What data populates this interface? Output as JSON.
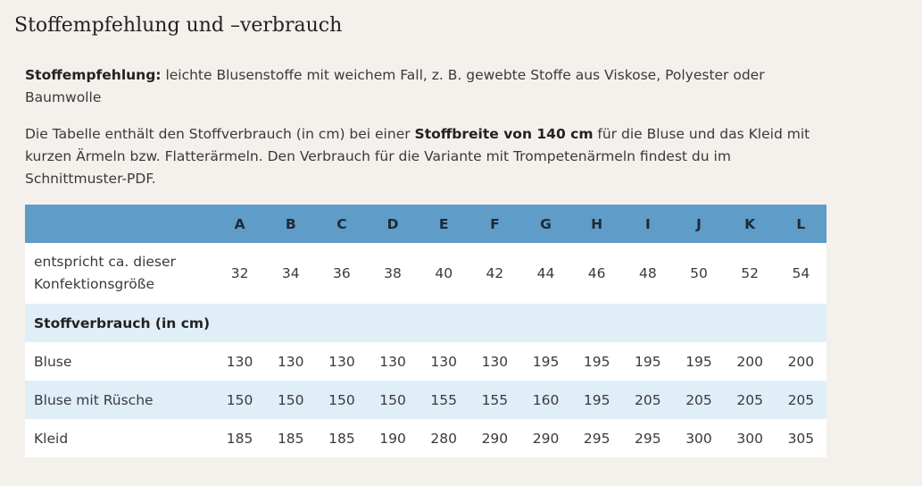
{
  "heading": "Stoffempfehlung und –verbrauch",
  "intro": {
    "label": "Stoffempfehlung:",
    "text": " leichte Blusenstoffe mit weichem Fall, z. B. gewebte Stoffe aus Viskose, Polyester oder Baumwolle"
  },
  "note": {
    "before": "Die Tabelle enthält den Stoffverbrauch (in cm) bei einer ",
    "bold": "Stoffbreite von 140 cm",
    "after": " für die Bluse und das Kleid mit kurzen Ärmeln bzw. Flatterärmeln. Den Verbrauch für die Variante mit Trompetenärmeln findest du im Schnittmuster-PDF."
  },
  "table": {
    "columns": [
      "A",
      "B",
      "C",
      "D",
      "E",
      "F",
      "G",
      "H",
      "I",
      "J",
      "K",
      "L"
    ],
    "size_row": {
      "label": "entspricht ca. dieser Konfektionsgröße",
      "values": [
        32,
        34,
        36,
        38,
        40,
        42,
        44,
        46,
        48,
        50,
        52,
        54
      ]
    },
    "section": "Stoffverbrauch (in cm)",
    "rows": [
      {
        "label": "Bluse",
        "values": [
          130,
          130,
          130,
          130,
          130,
          130,
          195,
          195,
          195,
          195,
          200,
          200
        ]
      },
      {
        "label": "Bluse mit Rüsche",
        "values": [
          150,
          150,
          150,
          150,
          155,
          155,
          160,
          195,
          205,
          205,
          205,
          205
        ]
      },
      {
        "label": "Kleid",
        "values": [
          185,
          185,
          185,
          190,
          280,
          290,
          290,
          295,
          295,
          300,
          300,
          305
        ]
      }
    ]
  }
}
